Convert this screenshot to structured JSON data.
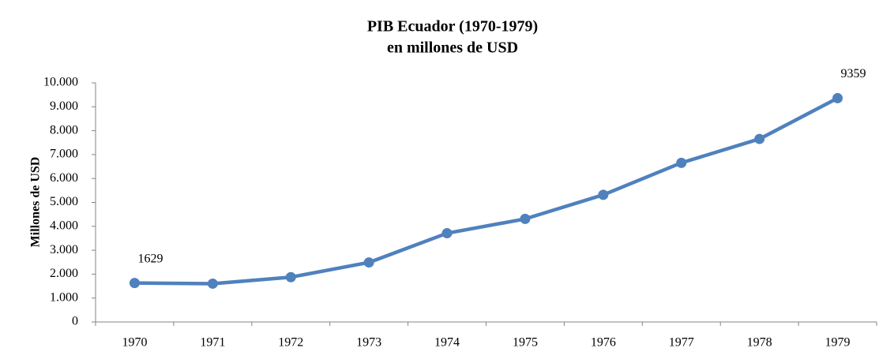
{
  "chart_data": {
    "type": "line",
    "title": "PIB Ecuador (1970-1979)",
    "subtitle": "en millones de USD",
    "y_label": "Millones de USD",
    "categories": [
      "1970",
      "1971",
      "1972",
      "1973",
      "1974",
      "1975",
      "1976",
      "1977",
      "1978",
      "1979"
    ],
    "series": [
      {
        "name": "PIB",
        "color": "#4f81bd",
        "values": [
          1629,
          1602,
          1874,
          2489,
          3711,
          4310,
          5317,
          6655,
          7654,
          9359
        ],
        "value_labels": [
          "1629",
          null,
          null,
          null,
          null,
          null,
          null,
          null,
          null,
          "9359"
        ]
      }
    ],
    "ylim": [
      0,
      10000
    ],
    "yticks": [
      0,
      {
        "value": 1000,
        "label": "1.000"
      },
      {
        "value": 2000,
        "label": "2.000"
      },
      {
        "value": 3000,
        "label": "3.000"
      },
      {
        "value": 4000,
        "label": "4.000"
      },
      {
        "value": 5000,
        "label": "5.000"
      },
      {
        "value": 6000,
        "label": "6.000"
      },
      {
        "value": 7000,
        "label": "7.000"
      },
      {
        "value": 8000,
        "label": "8.000"
      },
      {
        "value": 9000,
        "label": "9.000"
      },
      {
        "value": 10000,
        "label": "10.000"
      }
    ],
    "grid": false
  }
}
